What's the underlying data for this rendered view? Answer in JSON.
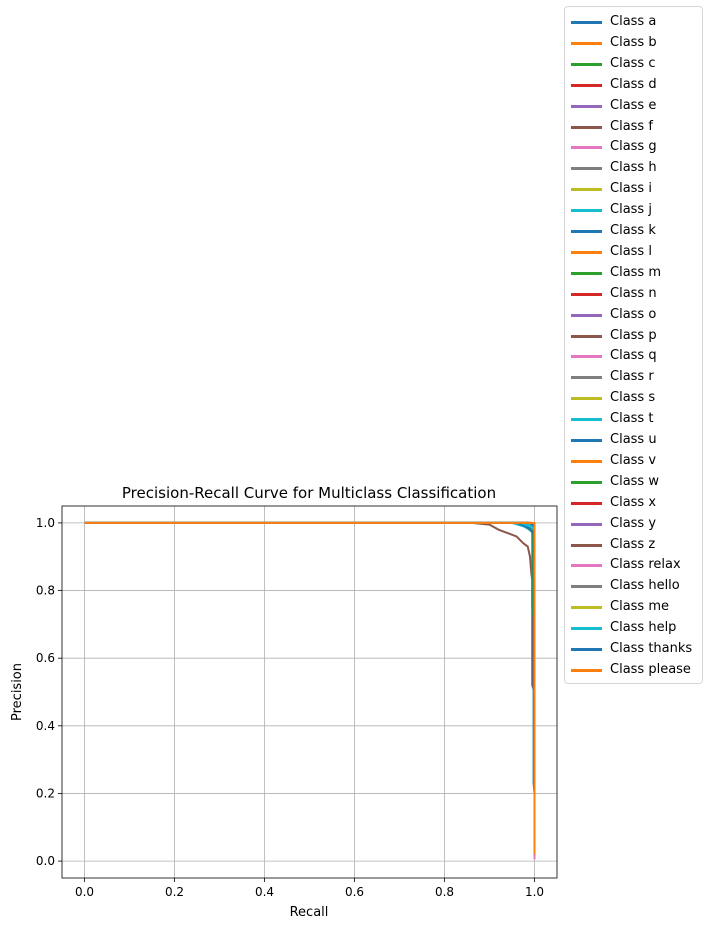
{
  "chart_data": {
    "type": "line",
    "title": "Precision-Recall Curve for Multiclass Classification",
    "xlabel": "Recall",
    "ylabel": "Precision",
    "xlim": [
      -0.05,
      1.05
    ],
    "ylim": [
      -0.05,
      1.05
    ],
    "xticks": [
      "0.0",
      "0.2",
      "0.4",
      "0.6",
      "0.8",
      "1.0"
    ],
    "yticks": [
      "0.0",
      "0.2",
      "0.4",
      "0.6",
      "0.8",
      "1.0"
    ],
    "grid": true,
    "legend_placement": "outside-right",
    "series": [
      {
        "name": "Class a",
        "color": "#1f77b4",
        "x": [
          0,
          0.97,
          0.985,
          0.995,
          1.0,
          1.0
        ],
        "y": [
          1.0,
          1.0,
          0.99,
          0.98,
          0.95,
          0.01
        ]
      },
      {
        "name": "Class b",
        "color": "#ff7f0e",
        "x": [
          0,
          0.99,
          1.0,
          1.0
        ],
        "y": [
          1.0,
          1.0,
          0.99,
          0.01
        ]
      },
      {
        "name": "Class c",
        "color": "#2ca02c",
        "x": [
          0,
          0.96,
          0.98,
          0.993,
          1.0,
          1.0
        ],
        "y": [
          1.0,
          1.0,
          0.99,
          0.975,
          0.96,
          0.01
        ]
      },
      {
        "name": "Class d",
        "color": "#d62728",
        "x": [
          0,
          0.98,
          0.995,
          1.0,
          1.0
        ],
        "y": [
          1.0,
          1.0,
          0.985,
          0.97,
          0.01
        ]
      },
      {
        "name": "Class e",
        "color": "#9467bd",
        "x": [
          0,
          0.99,
          1.0,
          1.0
        ],
        "y": [
          1.0,
          1.0,
          0.99,
          0.01
        ]
      },
      {
        "name": "Class f",
        "color": "#8c564b",
        "x": [
          0,
          0.86,
          0.9,
          0.92,
          0.94,
          0.96,
          0.975,
          0.985,
          0.99,
          0.993,
          0.995,
          0.995,
          1.0,
          1.0
        ],
        "y": [
          1.0,
          1.0,
          0.995,
          0.98,
          0.97,
          0.96,
          0.94,
          0.93,
          0.9,
          0.85,
          0.83,
          0.52,
          0.5,
          0.01
        ]
      },
      {
        "name": "Class g",
        "color": "#e377c2",
        "x": [
          0,
          0.99,
          1.0,
          1.0
        ],
        "y": [
          1.0,
          1.0,
          0.99,
          0.01
        ]
      },
      {
        "name": "Class h",
        "color": "#7f7f7f",
        "x": [
          0,
          0.98,
          0.995,
          1.0,
          1.0
        ],
        "y": [
          1.0,
          1.0,
          0.99,
          0.98,
          0.02
        ]
      },
      {
        "name": "Class i",
        "color": "#bcbd22",
        "x": [
          0,
          0.99,
          1.0,
          1.0
        ],
        "y": [
          1.0,
          1.0,
          0.99,
          0.02
        ]
      },
      {
        "name": "Class j",
        "color": "#17becf",
        "x": [
          0,
          0.95,
          0.975,
          0.99,
          1.0,
          1.0
        ],
        "y": [
          1.0,
          1.0,
          0.99,
          0.98,
          0.97,
          0.02
        ]
      },
      {
        "name": "Class k",
        "color": "#1f77b4",
        "x": [
          0,
          0.985,
          1.0,
          1.0
        ],
        "y": [
          1.0,
          1.0,
          0.99,
          0.02
        ]
      },
      {
        "name": "Class l",
        "color": "#ff7f0e",
        "x": [
          0,
          0.99,
          1.0,
          1.0
        ],
        "y": [
          1.0,
          1.0,
          0.995,
          0.02
        ]
      },
      {
        "name": "Class m",
        "color": "#2ca02c",
        "x": [
          0,
          0.97,
          0.99,
          0.995,
          0.995,
          1.0,
          1.0
        ],
        "y": [
          1.0,
          1.0,
          0.99,
          0.98,
          0.75,
          0.7,
          0.02
        ]
      },
      {
        "name": "Class n",
        "color": "#d62728",
        "x": [
          0,
          0.99,
          1.0,
          1.0
        ],
        "y": [
          1.0,
          1.0,
          0.99,
          0.02
        ]
      },
      {
        "name": "Class o",
        "color": "#9467bd",
        "x": [
          0,
          0.99,
          1.0,
          1.0
        ],
        "y": [
          1.0,
          1.0,
          0.99,
          0.02
        ]
      },
      {
        "name": "Class p",
        "color": "#8c564b",
        "x": [
          0,
          0.98,
          0.995,
          1.0,
          1.0
        ],
        "y": [
          1.0,
          1.0,
          0.99,
          0.97,
          0.02
        ]
      },
      {
        "name": "Class q",
        "color": "#e377c2",
        "x": [
          0,
          0.99,
          1.0,
          1.0
        ],
        "y": [
          1.0,
          1.0,
          0.99,
          0.005
        ]
      },
      {
        "name": "Class r",
        "color": "#7f7f7f",
        "x": [
          0,
          0.99,
          1.0,
          1.0
        ],
        "y": [
          1.0,
          1.0,
          0.99,
          0.02
        ]
      },
      {
        "name": "Class s",
        "color": "#bcbd22",
        "x": [
          0,
          0.99,
          1.0,
          1.0
        ],
        "y": [
          1.0,
          1.0,
          0.99,
          0.02
        ]
      },
      {
        "name": "Class t",
        "color": "#17becf",
        "x": [
          0,
          0.985,
          1.0,
          1.0
        ],
        "y": [
          1.0,
          1.0,
          0.98,
          0.02
        ]
      },
      {
        "name": "Class u",
        "color": "#1f77b4",
        "x": [
          0,
          0.96,
          0.98,
          0.99,
          0.998,
          0.998,
          1.0,
          1.0
        ],
        "y": [
          1.0,
          1.0,
          0.99,
          0.98,
          0.97,
          0.23,
          0.2,
          0.02
        ]
      },
      {
        "name": "Class v",
        "color": "#ff7f0e",
        "x": [
          0,
          0.99,
          1.0,
          1.0
        ],
        "y": [
          1.0,
          1.0,
          0.99,
          0.02
        ]
      },
      {
        "name": "Class w",
        "color": "#2ca02c",
        "x": [
          0,
          0.99,
          1.0,
          1.0
        ],
        "y": [
          1.0,
          1.0,
          0.99,
          0.02
        ]
      },
      {
        "name": "Class x",
        "color": "#d62728",
        "x": [
          0,
          0.99,
          1.0,
          1.0
        ],
        "y": [
          1.0,
          1.0,
          0.99,
          0.02
        ]
      },
      {
        "name": "Class y",
        "color": "#9467bd",
        "x": [
          0,
          0.99,
          1.0,
          1.0
        ],
        "y": [
          1.0,
          1.0,
          0.99,
          0.02
        ]
      },
      {
        "name": "Class z",
        "color": "#8c564b",
        "x": [
          0,
          0.99,
          1.0,
          1.0
        ],
        "y": [
          1.0,
          1.0,
          0.99,
          0.02
        ]
      },
      {
        "name": "Class relax",
        "color": "#e377c2",
        "x": [
          0,
          0.99,
          1.0,
          1.0
        ],
        "y": [
          1.0,
          1.0,
          0.99,
          0.01
        ]
      },
      {
        "name": "Class hello",
        "color": "#7f7f7f",
        "x": [
          0,
          0.99,
          1.0,
          1.0
        ],
        "y": [
          1.0,
          1.0,
          0.99,
          0.02
        ]
      },
      {
        "name": "Class me",
        "color": "#bcbd22",
        "x": [
          0,
          0.99,
          1.0,
          1.0
        ],
        "y": [
          1.0,
          1.0,
          0.99,
          0.02
        ]
      },
      {
        "name": "Class help",
        "color": "#17becf",
        "x": [
          0,
          0.97,
          0.99,
          1.0,
          1.0
        ],
        "y": [
          1.0,
          1.0,
          0.99,
          0.98,
          0.02
        ]
      },
      {
        "name": "Class thanks",
        "color": "#1f77b4",
        "x": [
          0,
          0.99,
          1.0,
          1.0
        ],
        "y": [
          1.0,
          1.0,
          0.99,
          0.02
        ]
      },
      {
        "name": "Class please",
        "color": "#ff7f0e",
        "x": [
          0,
          0.997,
          1.0,
          1.0
        ],
        "y": [
          1.0,
          1.0,
          1.0,
          0.02
        ]
      }
    ]
  }
}
